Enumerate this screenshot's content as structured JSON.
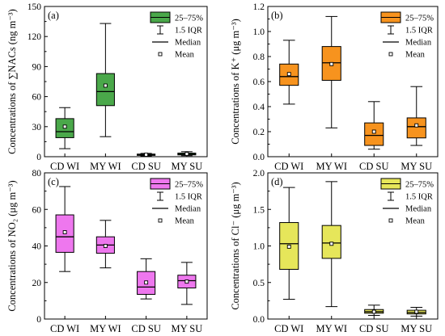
{
  "legend": {
    "box_label": "25–75%",
    "whisker_label": "1.5 IQR",
    "median_label": "Median",
    "mean_label": "Mean"
  },
  "chart_data": [
    {
      "type": "box",
      "panel_label": "(a)",
      "ylabel": "Concentrations of ∑NACs (ng m⁻³)",
      "ylim": [
        0,
        150
      ],
      "yticks": [
        0,
        30,
        60,
        90,
        120,
        150
      ],
      "categories": [
        "CD WI",
        "MY WI",
        "CD SU",
        "MY SU"
      ],
      "fill_color": "#4aa84a",
      "legend_position": "top-right",
      "boxes": [
        {
          "category": "CD WI",
          "whisker_low": 8,
          "q1": 19,
          "median": 25,
          "q3": 38,
          "whisker_high": 49,
          "mean": 30
        },
        {
          "category": "MY WI",
          "whisker_low": 20,
          "q1": 51,
          "median": 65,
          "q3": 83,
          "whisker_high": 133,
          "mean": 71
        },
        {
          "category": "CD SU",
          "whisker_low": 0.8,
          "q1": 1.3,
          "median": 1.8,
          "q3": 2.6,
          "whisker_high": 3.3,
          "mean": 2
        },
        {
          "category": "MY SU",
          "whisker_low": 1,
          "q1": 1.8,
          "median": 2.5,
          "q3": 3.6,
          "whisker_high": 5,
          "mean": 2.8
        }
      ]
    },
    {
      "type": "box",
      "panel_label": "(b)",
      "ylabel": "Concentrations of K⁺ (μg m⁻³)",
      "ylim": [
        0,
        1.2
      ],
      "yticks": [
        0,
        0.2,
        0.4,
        0.6,
        0.8,
        1.0,
        1.2
      ],
      "categories": [
        "CD WI",
        "MY WI",
        "CD SU",
        "MY SU"
      ],
      "fill_color": "#f7931e",
      "legend_position": "top-right",
      "boxes": [
        {
          "category": "CD WI",
          "whisker_low": 0.42,
          "q1": 0.57,
          "median": 0.64,
          "q3": 0.74,
          "whisker_high": 0.93,
          "mean": 0.66
        },
        {
          "category": "MY WI",
          "whisker_low": 0.23,
          "q1": 0.61,
          "median": 0.75,
          "q3": 0.88,
          "whisker_high": 1.12,
          "mean": 0.74
        },
        {
          "category": "CD SU",
          "whisker_low": 0.06,
          "q1": 0.09,
          "median": 0.17,
          "q3": 0.27,
          "whisker_high": 0.44,
          "mean": 0.2
        },
        {
          "category": "MY SU",
          "whisker_low": 0.09,
          "q1": 0.15,
          "median": 0.24,
          "q3": 0.31,
          "whisker_high": 0.56,
          "mean": 0.25
        }
      ]
    },
    {
      "type": "box",
      "panel_label": "(c)",
      "ylabel": "Concentrations of NO₂ (μg m⁻³)",
      "ylim": [
        0,
        80
      ],
      "yticks": [
        0,
        20,
        40,
        60,
        80
      ],
      "categories": [
        "CD WI",
        "MY WI",
        "CD SU",
        "MY SU"
      ],
      "fill_color": "#ee77ee",
      "legend_position": "top-right",
      "boxes": [
        {
          "category": "CD WI",
          "whisker_low": 26,
          "q1": 36.5,
          "median": 45,
          "q3": 57,
          "whisker_high": 72.5,
          "mean": 47.5
        },
        {
          "category": "MY WI",
          "whisker_low": 28,
          "q1": 36,
          "median": 40.5,
          "q3": 45,
          "whisker_high": 54,
          "mean": 40
        },
        {
          "category": "CD SU",
          "whisker_low": 11,
          "q1": 13.5,
          "median": 17.5,
          "q3": 26,
          "whisker_high": 33,
          "mean": 20
        },
        {
          "category": "MY SU",
          "whisker_low": 8,
          "q1": 17,
          "median": 21,
          "q3": 24,
          "whisker_high": 31,
          "mean": 20.5
        }
      ]
    },
    {
      "type": "box",
      "panel_label": "(d)",
      "ylabel": "Concentrations of Cl⁻ (μg m⁻³)",
      "ylim": [
        0,
        2.0
      ],
      "yticks": [
        0,
        0.5,
        1.0,
        1.5,
        2.0
      ],
      "categories": [
        "CD WI",
        "MY WI",
        "CD SU",
        "MY SU"
      ],
      "fill_color": "#e6e65a",
      "legend_position": "top-right",
      "boxes": [
        {
          "category": "CD WI",
          "whisker_low": 0.27,
          "q1": 0.68,
          "median": 1.03,
          "q3": 1.32,
          "whisker_high": 1.8,
          "mean": 0.99
        },
        {
          "category": "MY WI",
          "whisker_low": 0.17,
          "q1": 0.83,
          "median": 1.04,
          "q3": 1.28,
          "whisker_high": 1.88,
          "mean": 1.03
        },
        {
          "category": "CD SU",
          "whisker_low": 0.05,
          "q1": 0.08,
          "median": 0.1,
          "q3": 0.13,
          "whisker_high": 0.19,
          "mean": 0.1
        },
        {
          "category": "MY SU",
          "whisker_low": 0.04,
          "q1": 0.07,
          "median": 0.09,
          "q3": 0.12,
          "whisker_high": 0.16,
          "mean": 0.1
        }
      ]
    }
  ]
}
